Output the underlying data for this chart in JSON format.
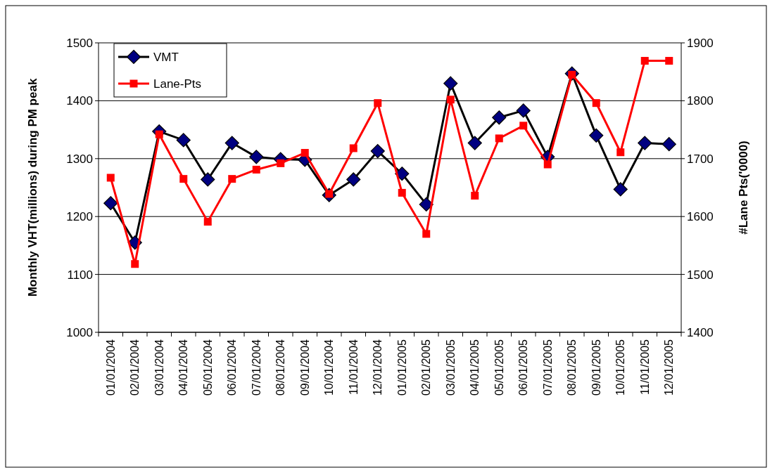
{
  "chart_data": {
    "type": "line",
    "categories": [
      "01/01/2004",
      "02/01/2004",
      "03/01/2004",
      "04/01/2004",
      "05/01/2004",
      "06/01/2004",
      "07/01/2004",
      "08/01/2004",
      "09/01/2004",
      "10/01/2004",
      "11/01/2004",
      "12/01/2004",
      "01/01/2005",
      "02/01/2005",
      "03/01/2005",
      "04/01/2005",
      "05/01/2005",
      "06/01/2005",
      "07/01/2005",
      "08/01/2005",
      "09/01/2005",
      "10/01/2005",
      "11/01/2005",
      "12/01/2005"
    ],
    "series": [
      {
        "name": "VMT",
        "color": "#000000",
        "marker": "diamond",
        "values": [
          1223,
          1155,
          1347,
          1332,
          1264,
          1327,
          1303,
          1299,
          1298,
          1237,
          1264,
          1313,
          1274,
          1221,
          1430,
          1327,
          1371,
          1383,
          1303,
          1447,
          1340,
          1247,
          1327,
          1325
        ]
      },
      {
        "name": "Lane-Pts",
        "color": "#ff0000",
        "marker": "square",
        "axis": "y2",
        "values": [
          1667,
          1518,
          1742,
          1665,
          1591,
          1665,
          1681,
          1692,
          1710,
          1639,
          1718,
          1796,
          1641,
          1570,
          1802,
          1636,
          1735,
          1757,
          1690,
          1845,
          1796,
          1711,
          1869,
          1869
        ]
      }
    ],
    "ylabel": "Monthly VHT(millions) during PM peak",
    "y2label": "#Lane Pts('0000)",
    "ylim": [
      1000,
      1500
    ],
    "yticks": [
      1000,
      1100,
      1200,
      1300,
      1400,
      1500
    ],
    "y2lim": [
      1400,
      1900
    ],
    "y2ticks": [
      1400,
      1500,
      1600,
      1700,
      1800,
      1900
    ],
    "grid": "y",
    "legend": "top left",
    "line_style": "solid"
  }
}
